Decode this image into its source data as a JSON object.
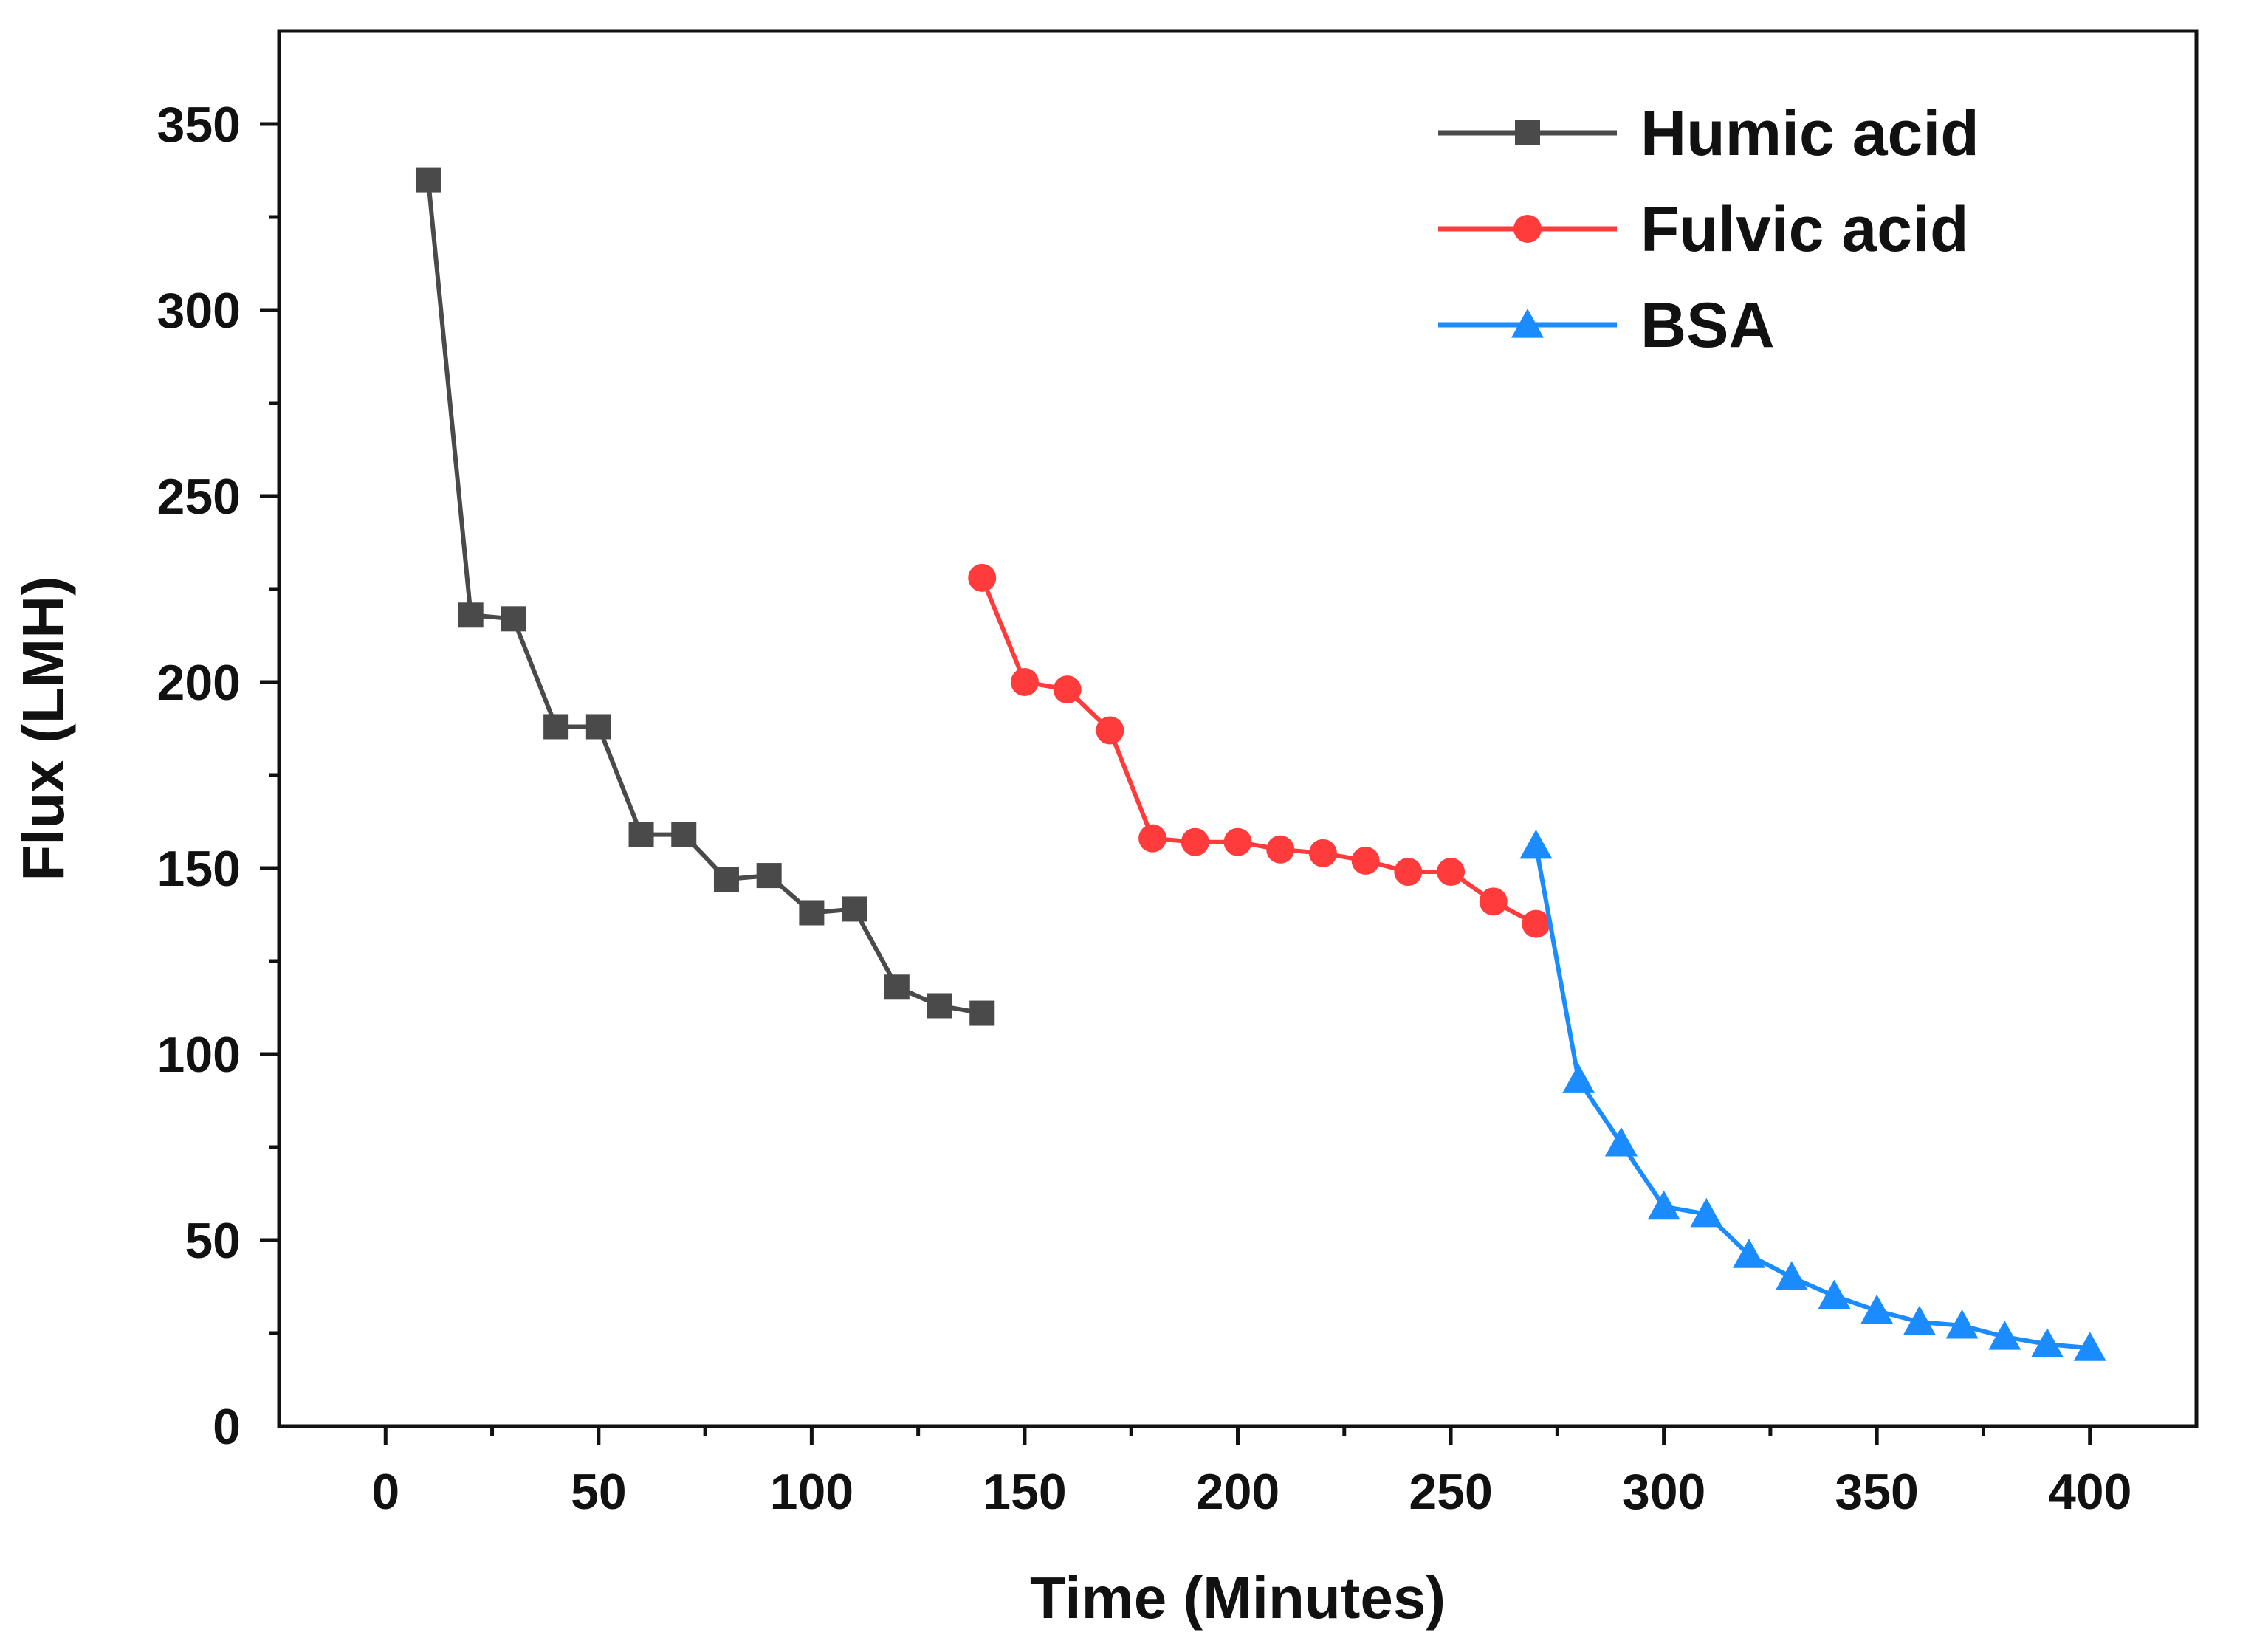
{
  "chart_data": {
    "type": "line",
    "title": "",
    "xlabel": "Time (Minutes)",
    "ylabel": "Flux (LMH)",
    "xlim": [
      -25,
      425
    ],
    "ylim": [
      0,
      375
    ],
    "xticks": [
      0,
      50,
      100,
      150,
      200,
      250,
      300,
      350,
      400
    ],
    "yticks": [
      0,
      50,
      100,
      150,
      200,
      250,
      300,
      350
    ],
    "grid": false,
    "legend_position": "top-right",
    "series": [
      {
        "name": "Humic acid",
        "color": "#4a4a4a",
        "marker": "square",
        "x": [
          10,
          20,
          30,
          40,
          50,
          60,
          70,
          80,
          90,
          100,
          110,
          120,
          130,
          140
        ],
        "y": [
          335,
          218,
          217,
          188,
          188,
          159,
          159,
          147,
          148,
          138,
          139,
          118,
          113,
          111
        ]
      },
      {
        "name": "Fulvic acid",
        "color": "#ff3b3b",
        "marker": "circle",
        "x": [
          140,
          150,
          160,
          170,
          180,
          190,
          200,
          210,
          220,
          230,
          240,
          250,
          260,
          270
        ],
        "y": [
          228,
          200,
          198,
          187,
          158,
          157,
          157,
          155,
          154,
          152,
          149,
          149,
          141,
          135
        ]
      },
      {
        "name": "BSA",
        "color": "#1a8cff",
        "marker": "triangle",
        "x": [
          270,
          280,
          290,
          300,
          310,
          320,
          330,
          340,
          350,
          360,
          370,
          380,
          390,
          400
        ],
        "y": [
          156,
          93,
          76,
          59,
          57,
          46,
          40,
          35,
          31,
          28,
          27,
          24,
          22,
          21
        ]
      }
    ]
  }
}
